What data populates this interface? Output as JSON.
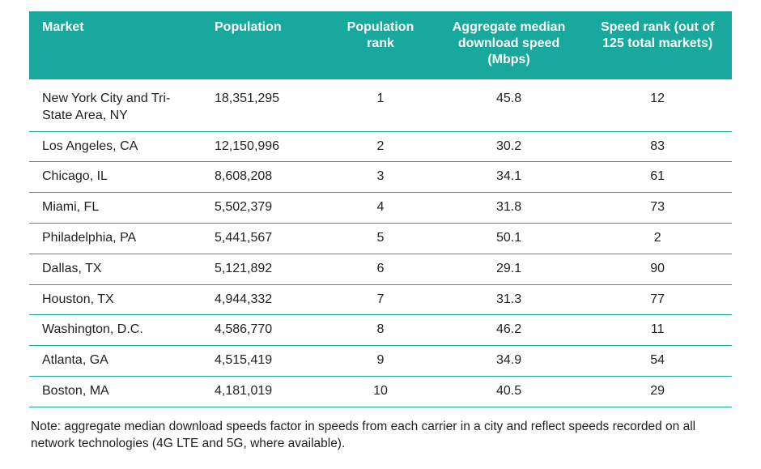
{
  "table": {
    "type": "table",
    "header_bg": "#18a89e",
    "header_fg": "#ffffff",
    "body_fg": "#222222",
    "row_border": "#18a89e",
    "background_color": "#ffffff",
    "header_fontweight": 700,
    "header_fontsize": 16,
    "body_fontsize": 16,
    "columns": [
      "Market",
      "Population",
      "Population rank",
      "Aggregate median download speed (Mbps)",
      "Speed rank (out of 125 total markets)"
    ],
    "column_align": [
      "left",
      "left",
      "center",
      "center",
      "center"
    ],
    "column_widths_pct": [
      26,
      18,
      16,
      22,
      22
    ],
    "rows": [
      [
        "New York City and Tri-State Area, NY",
        "18,351,295",
        "1",
        "45.8",
        "12"
      ],
      [
        "Los Angeles, CA",
        "12,150,996",
        "2",
        "30.2",
        "83"
      ],
      [
        "Chicago, IL",
        "8,608,208",
        "3",
        "34.1",
        "61"
      ],
      [
        "Miami, FL",
        "5,502,379",
        "4",
        "31.8",
        "73"
      ],
      [
        "Philadelphia, PA",
        "5,441,567",
        "5",
        "50.1",
        "2"
      ],
      [
        "Dallas, TX",
        "5,121,892",
        "6",
        "29.1",
        "90"
      ],
      [
        "Houston, TX",
        "4,944,332",
        "7",
        "31.3",
        "77"
      ],
      [
        "Washington, D.C.",
        "4,586,770",
        "8",
        "46.2",
        "11"
      ],
      [
        "Atlanta, GA",
        "4,515,419",
        "9",
        "34.9",
        "54"
      ],
      [
        "Boston, MA",
        "4,181,019",
        "10",
        "40.5",
        "29"
      ]
    ]
  },
  "note": "Note: aggregate median download speeds factor in speeds from each carrier in a city and reflect speeds recorded on all network technologies (4G LTE and 5G, where available)."
}
